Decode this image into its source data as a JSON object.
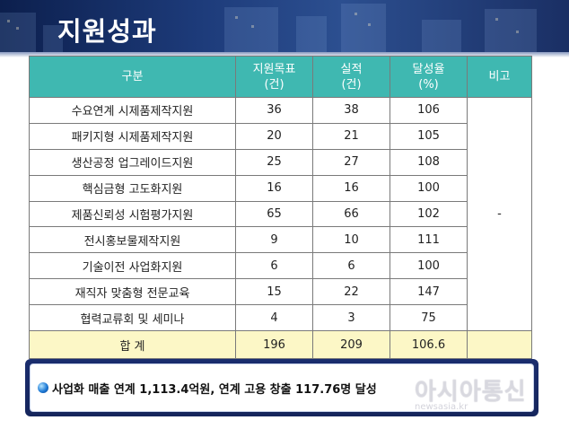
{
  "title": "지원성과",
  "table": {
    "headers": {
      "category": "구분",
      "target": [
        "지원목표",
        "(건)"
      ],
      "actual": [
        "실적",
        "(건)"
      ],
      "rate": [
        "달성율",
        "(%)"
      ],
      "remark": "비고"
    },
    "rows": [
      {
        "category": "수요연계 시제품제작지원",
        "target": "36",
        "actual": "38",
        "rate": "106"
      },
      {
        "category": "패키지형 시제품제작지원",
        "target": "20",
        "actual": "21",
        "rate": "105"
      },
      {
        "category": "생산공정 업그레이드지원",
        "target": "25",
        "actual": "27",
        "rate": "108"
      },
      {
        "category": "핵심금형 고도화지원",
        "target": "16",
        "actual": "16",
        "rate": "100"
      },
      {
        "category": "제품신뢰성 시험평가지원",
        "target": "65",
        "actual": "66",
        "rate": "102"
      },
      {
        "category": "전시홍보물제작지원",
        "target": "9",
        "actual": "10",
        "rate": "111"
      },
      {
        "category": "기술이전 사업화지원",
        "target": "6",
        "actual": "6",
        "rate": "100"
      },
      {
        "category": "재직자 맞춤형 전문교육",
        "target": "15",
        "actual": "22",
        "rate": "147"
      },
      {
        "category": "협력교류회 및 세미나",
        "target": "4",
        "actual": "3",
        "rate": "75"
      }
    ],
    "remark_value": "-",
    "total": {
      "label": "합 계",
      "target": "196",
      "actual": "209",
      "rate": "106.6"
    }
  },
  "summary": "사업화 매출 연계 1,113.4억원, 연계 고용 창출 117.76명 달성",
  "watermark": {
    "main": "아시아통신",
    "sub": "newsasia.kr"
  },
  "colors": {
    "header_bg": "#3fb8b1",
    "total_bg": "#fcf7c6",
    "summary_frame": "#1a2d6e"
  }
}
